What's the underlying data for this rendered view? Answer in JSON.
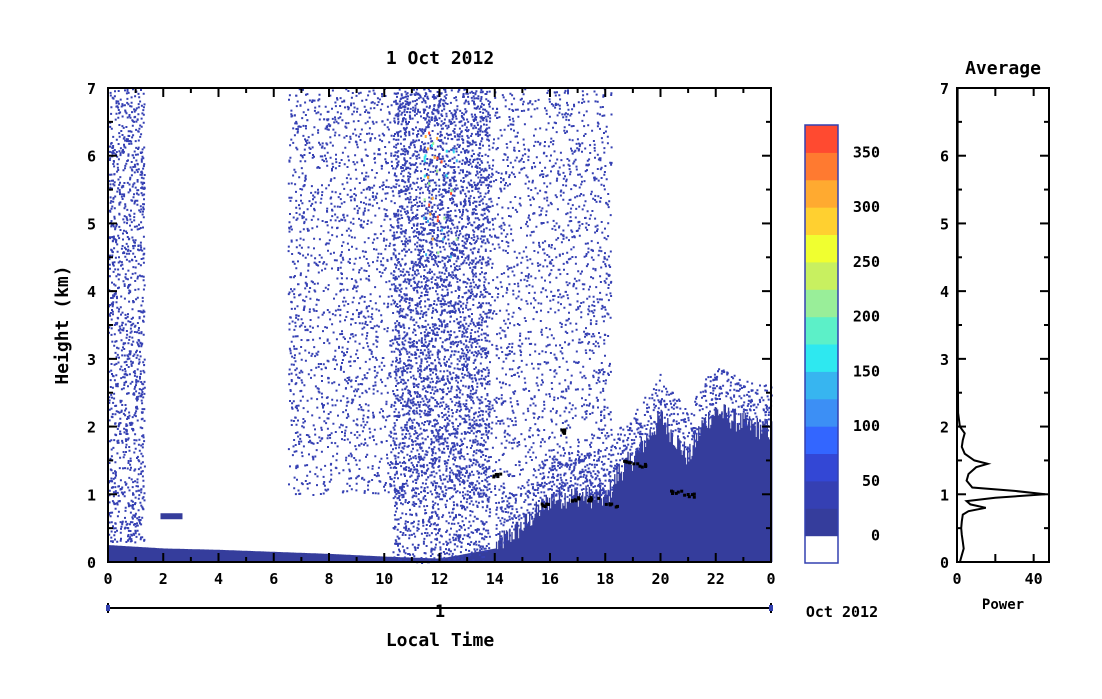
{
  "chart_data": {
    "type": "heatmap",
    "title": "1 Oct 2012",
    "xlabel": "Local Time",
    "ylabel": "Height (km)",
    "x_ticks": [
      "0",
      "2",
      "4",
      "6",
      "8",
      "10",
      "12",
      "14",
      "16",
      "18",
      "20",
      "22",
      "0"
    ],
    "xlim": [
      0,
      24
    ],
    "y_ticks": [
      "0",
      "1",
      "2",
      "3",
      "4",
      "5",
      "6",
      "7"
    ],
    "ylim": [
      0,
      7
    ],
    "date_axis": {
      "day_label": "1",
      "month_label": "Oct 2012"
    },
    "colorbar": {
      "tick_labels": [
        "0",
        "50",
        "100",
        "150",
        "200",
        "250",
        "300",
        "350"
      ],
      "range": [
        -25,
        375
      ],
      "colors": [
        "#ffffff",
        "#353d9c",
        "#3540b3",
        "#3347d5",
        "#3366ff",
        "#3c8ff5",
        "#37b5f0",
        "#2ee8f0",
        "#5cf0c8",
        "#99ee99",
        "#c8f060",
        "#f0ff30",
        "#ffd030",
        "#ffaa30",
        "#ff7a30",
        "#ff4a30"
      ]
    },
    "background_echo": {
      "description_values": [
        {
          "time": [
            0,
            1.3
          ],
          "height": [
            0.3,
            7
          ]
        },
        {
          "time": [
            6.5,
            18.2
          ],
          "height": [
            1,
            7
          ]
        },
        {
          "time": [
            10.3,
            13.8
          ],
          "height": [
            0,
            7
          ]
        }
      ]
    },
    "boundary_layer_top_km": [
      {
        "time": 0,
        "height": 0.25
      },
      {
        "time": 2,
        "height": 0.2
      },
      {
        "time": 4,
        "height": 0.18
      },
      {
        "time": 6,
        "height": 0.15
      },
      {
        "time": 8,
        "height": 0.12
      },
      {
        "time": 10,
        "height": 0.08
      },
      {
        "time": 12,
        "height": 0.05
      },
      {
        "time": 14,
        "height": 0.2
      },
      {
        "time": 15,
        "height": 0.5
      },
      {
        "time": 16,
        "height": 0.9
      },
      {
        "time": 17,
        "height": 0.95
      },
      {
        "time": 18,
        "height": 0.9
      },
      {
        "time": 18.5,
        "height": 1.3
      },
      {
        "time": 19,
        "height": 1.5
      },
      {
        "time": 19.5,
        "height": 1.8
      },
      {
        "time": 20,
        "height": 2.1
      },
      {
        "time": 21,
        "height": 1.5
      },
      {
        "time": 21.5,
        "height": 2.0
      },
      {
        "time": 22,
        "height": 2.2
      },
      {
        "time": 23,
        "height": 2.0
      },
      {
        "time": 24,
        "height": 1.9
      }
    ],
    "side_panel": {
      "title": "Average",
      "xlabel": "Power",
      "x_ticks": [
        "0",
        "40"
      ],
      "xlim": [
        0,
        48
      ],
      "y_ticks": [
        "0",
        "1",
        "2",
        "3",
        "4",
        "5",
        "6",
        "7"
      ],
      "ylim": [
        0,
        7
      ],
      "profile": [
        {
          "height": 0.0,
          "power": 1.5
        },
        {
          "height": 0.1,
          "power": 2.5
        },
        {
          "height": 0.2,
          "power": 3.5
        },
        {
          "height": 0.3,
          "power": 3
        },
        {
          "height": 0.4,
          "power": 2.5
        },
        {
          "height": 0.5,
          "power": 2.2
        },
        {
          "height": 0.6,
          "power": 2.5
        },
        {
          "height": 0.7,
          "power": 3
        },
        {
          "height": 0.75,
          "power": 6
        },
        {
          "height": 0.8,
          "power": 15
        },
        {
          "height": 0.85,
          "power": 7
        },
        {
          "height": 0.9,
          "power": 5
        },
        {
          "height": 0.95,
          "power": 20
        },
        {
          "height": 1.0,
          "power": 46
        },
        {
          "height": 1.05,
          "power": 30
        },
        {
          "height": 1.1,
          "power": 8
        },
        {
          "height": 1.2,
          "power": 5
        },
        {
          "height": 1.3,
          "power": 6
        },
        {
          "height": 1.4,
          "power": 10
        },
        {
          "height": 1.45,
          "power": 16
        },
        {
          "height": 1.5,
          "power": 9
        },
        {
          "height": 1.6,
          "power": 4
        },
        {
          "height": 1.7,
          "power": 2.5
        },
        {
          "height": 1.8,
          "power": 3
        },
        {
          "height": 1.9,
          "power": 4
        },
        {
          "height": 2.0,
          "power": 1.5
        },
        {
          "height": 2.2,
          "power": 0.6
        },
        {
          "height": 3.0,
          "power": 0.4
        },
        {
          "height": 5.0,
          "power": 0.3
        },
        {
          "height": 7.0,
          "power": 0.3
        }
      ]
    }
  }
}
